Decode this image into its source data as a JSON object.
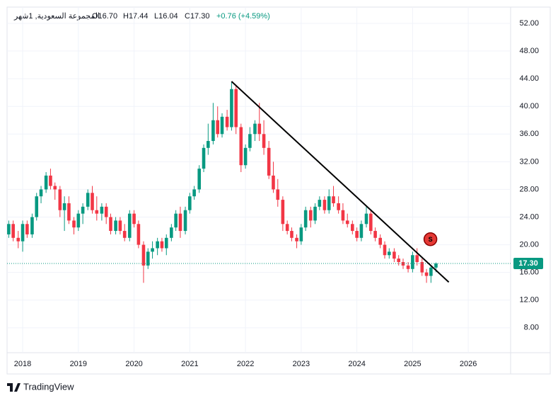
{
  "header": {
    "symbol": "المجموعة السعودية, 1شهر",
    "open": "O16.70",
    "high": "H17.44",
    "low": "L16.04",
    "close": "C17.30",
    "change": "+0.76 (+4.59%)"
  },
  "brand": "TradingView",
  "chart_data": {
    "type": "candlestick",
    "x": [
      2017.75,
      2017.83,
      2017.92,
      2018.0,
      2018.08,
      2018.17,
      2018.25,
      2018.33,
      2018.42,
      2018.5,
      2018.58,
      2018.67,
      2018.75,
      2018.83,
      2018.92,
      2019.0,
      2019.08,
      2019.17,
      2019.25,
      2019.33,
      2019.42,
      2019.5,
      2019.58,
      2019.67,
      2019.75,
      2019.83,
      2019.92,
      2020.0,
      2020.08,
      2020.17,
      2020.25,
      2020.33,
      2020.42,
      2020.5,
      2020.58,
      2020.67,
      2020.75,
      2020.83,
      2020.92,
      2021.0,
      2021.08,
      2021.17,
      2021.25,
      2021.33,
      2021.42,
      2021.5,
      2021.58,
      2021.67,
      2021.75,
      2021.83,
      2021.92,
      2022.0,
      2022.08,
      2022.17,
      2022.25,
      2022.33,
      2022.42,
      2022.5,
      2022.58,
      2022.67,
      2022.75,
      2022.83,
      2022.92,
      2023.0,
      2023.08,
      2023.17,
      2023.25,
      2023.33,
      2023.42,
      2023.5,
      2023.58,
      2023.67,
      2023.75,
      2023.83,
      2023.92,
      2024.0,
      2024.08,
      2024.17,
      2024.25,
      2024.33,
      2024.42,
      2024.5,
      2024.58,
      2024.67,
      2024.75,
      2024.83,
      2024.92,
      2025.0,
      2025.08,
      2025.17,
      2025.25,
      2025.33,
      2025.42
    ],
    "open": [
      21.5,
      23,
      21,
      20.5,
      23,
      21.5,
      24,
      27,
      28,
      30,
      28.5,
      28,
      25,
      26,
      23.5,
      22.5,
      24.5,
      25.5,
      27.5,
      25,
      24.5,
      25.5,
      24,
      22,
      23.5,
      22,
      21,
      24.5,
      23,
      20,
      17,
      19,
      19.5,
      20.5,
      19.5,
      21,
      22.5,
      24.5,
      22,
      25,
      27,
      28,
      31,
      34,
      35,
      38,
      36,
      38.5,
      37,
      42.5,
      37,
      31.5,
      34,
      36,
      37.5,
      36,
      34,
      30,
      28,
      26.5,
      23,
      22,
      21,
      20.5,
      22.5,
      25,
      23.5,
      25.5,
      26.5,
      25,
      27,
      26,
      25,
      23.5,
      23,
      22,
      21,
      23,
      24.5,
      22,
      21,
      20,
      18.5,
      19,
      18,
      17.5,
      17,
      16.5,
      18.5,
      17.5,
      16,
      15.5,
      16.7
    ],
    "high": [
      23.5,
      23.5,
      22,
      23.5,
      23.5,
      24.5,
      27.5,
      28.5,
      30.5,
      31,
      29,
      28.5,
      27,
      27,
      24,
      25,
      26,
      28,
      28.5,
      27,
      26,
      26,
      24.5,
      24,
      24,
      23,
      25,
      25,
      23.5,
      20.5,
      19.5,
      20.5,
      21,
      21,
      21.5,
      23,
      25,
      25.5,
      25.5,
      27.5,
      28.5,
      31.5,
      34.5,
      37.5,
      40.5,
      40,
      39,
      39.5,
      43.5,
      43,
      37.5,
      34.5,
      37,
      38,
      40.5,
      38,
      35,
      32,
      29.5,
      27,
      23.5,
      22.5,
      21.5,
      23,
      25.5,
      25.5,
      26,
      27,
      27,
      28,
      28.5,
      27,
      26,
      24.5,
      23.5,
      22.5,
      23.5,
      25.5,
      25,
      22.5,
      21.5,
      20.5,
      19.5,
      19.5,
      18.5,
      18,
      17.5,
      19,
      19.5,
      18,
      16.5,
      17,
      17.44
    ],
    "low": [
      21,
      20.5,
      19.5,
      19,
      21,
      21,
      23.5,
      26,
      27.5,
      28,
      26.5,
      24,
      22,
      23,
      21.5,
      22,
      23,
      25,
      24.5,
      23.5,
      23.5,
      23,
      21.5,
      21.5,
      21.5,
      20.5,
      20.5,
      22.5,
      19.5,
      14.5,
      16.5,
      18,
      18.5,
      19,
      18.5,
      20.5,
      22,
      21,
      21.5,
      24.5,
      26.5,
      27.5,
      30.5,
      33,
      34.5,
      35.5,
      35.5,
      36.5,
      36.5,
      36,
      30.5,
      31,
      33.5,
      35,
      35,
      33,
      29.5,
      27.5,
      25.5,
      22,
      21.5,
      20.5,
      19.5,
      20,
      22,
      22.5,
      23,
      25,
      24.5,
      24.5,
      25.5,
      24.5,
      23,
      22.5,
      21.5,
      20.5,
      20.5,
      22.5,
      21.5,
      20.5,
      19.5,
      18,
      18,
      17.5,
      17,
      16.5,
      16,
      16,
      17,
      15.5,
      14.5,
      14.5,
      16.04
    ],
    "close": [
      23,
      21,
      20.5,
      23,
      21.5,
      24,
      27,
      28,
      30,
      28.5,
      28,
      25,
      26,
      23.5,
      22.5,
      24.5,
      25.5,
      27.5,
      25,
      24.5,
      25.5,
      24,
      22,
      23.5,
      22,
      21,
      24.5,
      23,
      20,
      17,
      19,
      19.5,
      20.5,
      19.5,
      21,
      22.5,
      24.5,
      22,
      25,
      27,
      28,
      31,
      34,
      35,
      38,
      36,
      38.5,
      37,
      42.5,
      37,
      31.5,
      34,
      36,
      37.5,
      36,
      34,
      30,
      28,
      26.5,
      23,
      22,
      21,
      20.5,
      22.5,
      25,
      23.5,
      25.5,
      26.5,
      25,
      27,
      26,
      25,
      23.5,
      23,
      22,
      21,
      23,
      24.5,
      22,
      21,
      20,
      18.5,
      19,
      18,
      17.5,
      17,
      16.5,
      18.5,
      17.5,
      16,
      15.5,
      16.7,
      17.3
    ],
    "up_color": "#089981",
    "down_color": "#f23645",
    "xlim": [
      2017.72,
      2026.76
    ],
    "xticks": [
      2018,
      2019,
      2020,
      2021,
      2022,
      2023,
      2024,
      2025,
      2026
    ],
    "ylim": [
      4.4,
      54.35
    ],
    "yticks": [
      {
        "value": 8,
        "label": "8.00"
      },
      {
        "value": 12,
        "label": "12.00"
      },
      {
        "value": 16,
        "label": "16.00"
      },
      {
        "value": 20,
        "label": "20.00"
      },
      {
        "value": 24,
        "label": "24.00"
      },
      {
        "value": 28,
        "label": "28.00"
      },
      {
        "value": 32,
        "label": "32.00"
      },
      {
        "value": 36,
        "label": "36.00"
      },
      {
        "value": 40,
        "label": "40.00"
      },
      {
        "value": 44,
        "label": "44.00"
      },
      {
        "value": 48,
        "label": "48.00"
      },
      {
        "value": 52,
        "label": "52.00"
      }
    ],
    "grid": true,
    "trendline": {
      "x": [
        2021.75,
        2025.65
      ],
      "y": [
        43.6,
        14.6
      ],
      "color": "#000000"
    },
    "signal": {
      "text": "S",
      "x": 2025.32,
      "y": 20.8,
      "color": "#e53935"
    },
    "last_price": {
      "value": 17.3,
      "label": "17.30",
      "color": "#089981"
    }
  }
}
